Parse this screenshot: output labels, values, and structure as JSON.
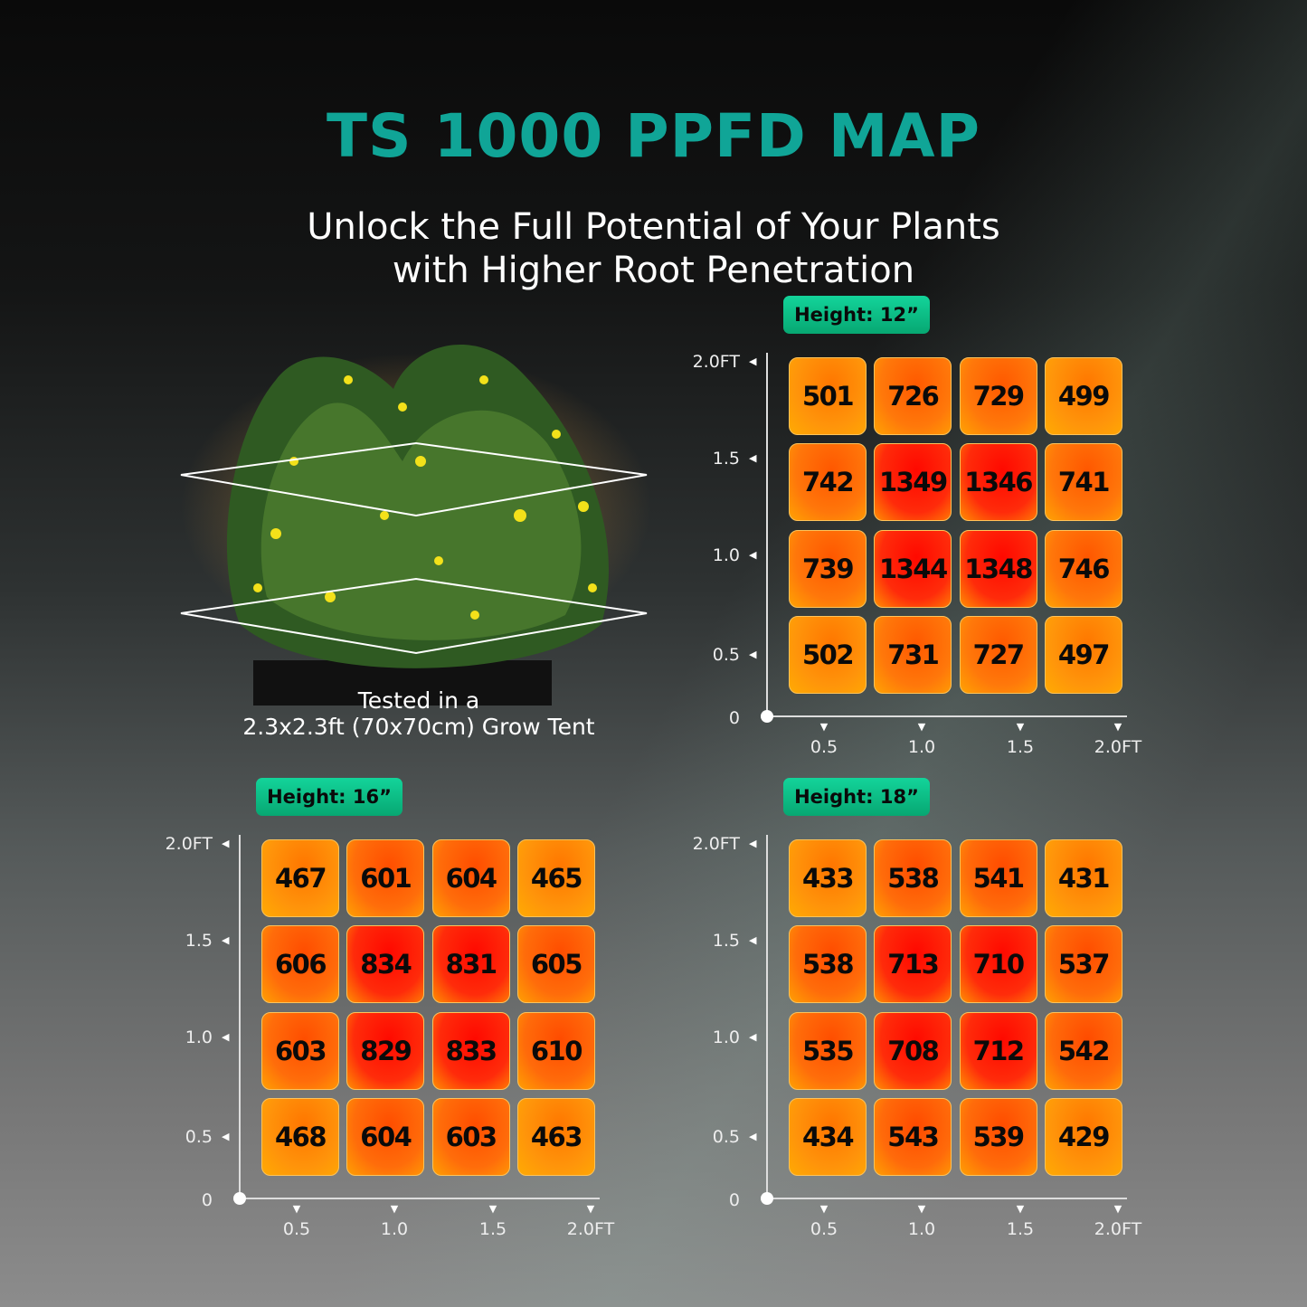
{
  "title": "TS 1000 PPFD MAP",
  "subtitle_lines": [
    "Unlock the Full Potential of Your Plants",
    "with Higher Root Penetration"
  ],
  "caption_lines": [
    "Tested in a",
    "2.3x2.3ft (70x70cm) Grow Tent"
  ],
  "colors": {
    "title": "#10a597",
    "badge": "#0fc68a",
    "low": "#ff8c00",
    "high": "#ff1a00"
  },
  "chart_data": [
    {
      "type": "heatmap",
      "title": "Height: 12”",
      "y_ticks": [
        "2.0FT",
        "1.5",
        "1.0",
        "0.5",
        "0"
      ],
      "x_ticks": [
        "0.5",
        "1.0",
        "1.5",
        "2.0FT"
      ],
      "rows": [
        [
          501,
          726,
          729,
          499
        ],
        [
          742,
          1349,
          1346,
          741
        ],
        [
          739,
          1344,
          1348,
          746
        ],
        [
          502,
          731,
          727,
          497
        ]
      ]
    },
    {
      "type": "heatmap",
      "title": "Height: 16”",
      "y_ticks": [
        "2.0FT",
        "1.5",
        "1.0",
        "0.5",
        "0"
      ],
      "x_ticks": [
        "0.5",
        "1.0",
        "1.5",
        "2.0FT"
      ],
      "rows": [
        [
          467,
          601,
          604,
          465
        ],
        [
          606,
          834,
          831,
          605
        ],
        [
          603,
          829,
          833,
          610
        ],
        [
          468,
          604,
          603,
          463
        ]
      ]
    },
    {
      "type": "heatmap",
      "title": "Height: 18”",
      "y_ticks": [
        "2.0FT",
        "1.5",
        "1.0",
        "0.5",
        "0"
      ],
      "x_ticks": [
        "0.5",
        "1.0",
        "1.5",
        "2.0FT"
      ],
      "rows": [
        [
          433,
          538,
          541,
          431
        ],
        [
          538,
          713,
          710,
          537
        ],
        [
          535,
          708,
          712,
          542
        ],
        [
          434,
          543,
          539,
          429
        ]
      ]
    }
  ]
}
